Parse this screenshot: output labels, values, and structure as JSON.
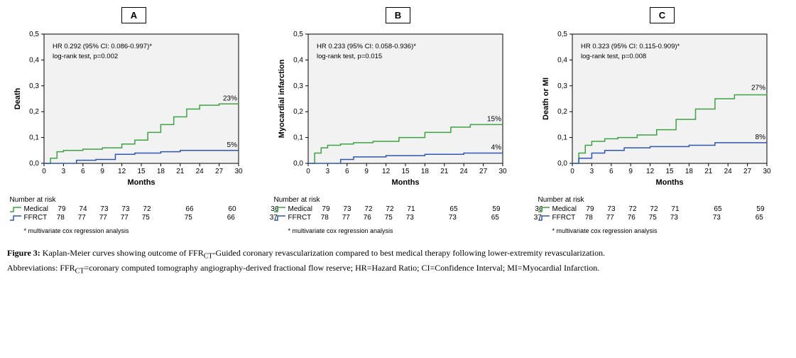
{
  "figure": {
    "captionLead": "Figure 3:",
    "captionBody": " Kaplan-Meier curves showing outcome of FFR",
    "captionSub1": "CT",
    "captionBody2": "-Guided coronary revascularization compared to best medical therapy following lower-extremity revascularization.",
    "abbrevLead": "Abbreviations: FFR",
    "abbrevSub": "CT",
    "abbrevBody": "=coronary computed tomography angiography-derived fractional flow reserve; HR=Hazard Ratio; CI=Confidence Interval; MI=Myocardial Infarction."
  },
  "style": {
    "plot_bg": "#f2f2f2",
    "border_color": "#000000",
    "grid_color": "#f2f2f2",
    "tick_font_size": 10,
    "axis_label_font_size": 11,
    "axis_font_weight": "bold",
    "medical_color": "#3fa244",
    "ffrct_color": "#2f56b0",
    "line_width": 1.5,
    "ylim": [
      0,
      0.5
    ],
    "ytick_step": 0.1,
    "yticks": [
      "0,0",
      "0,1",
      "0,2",
      "0,3",
      "0,4",
      "0,5"
    ],
    "xlim": [
      0,
      30
    ],
    "xtick_step": 3,
    "xticks": [
      "0",
      "3",
      "6",
      "9",
      "12",
      "15",
      "18",
      "21",
      "24",
      "27",
      "30"
    ],
    "xlabel": "Months"
  },
  "legend": {
    "riskTitle": "Number at risk",
    "medicalLabel": "Medical",
    "ffrctLabel": "FFRCT",
    "footnote": "* multivariate cox regression analysis"
  },
  "panels": [
    {
      "id": "A",
      "ylabel": "Death",
      "hr_text": "HR 0.292 (95% CI: 0.086-0.997)*",
      "logrank_text": "log-rank test, p=0.002",
      "medical_end_label": "23%",
      "ffrct_end_label": "5%",
      "medical_points": [
        [
          0,
          0
        ],
        [
          1,
          0.02
        ],
        [
          2,
          0.045
        ],
        [
          3,
          0.05
        ],
        [
          6,
          0.055
        ],
        [
          9,
          0.06
        ],
        [
          12,
          0.075
        ],
        [
          14,
          0.09
        ],
        [
          16,
          0.12
        ],
        [
          18,
          0.15
        ],
        [
          20,
          0.18
        ],
        [
          22,
          0.21
        ],
        [
          24,
          0.225
        ],
        [
          27,
          0.23
        ],
        [
          30,
          0.23
        ]
      ],
      "ffrct_points": [
        [
          0,
          0
        ],
        [
          2,
          0.0
        ],
        [
          5,
          0.012
        ],
        [
          8,
          0.015
        ],
        [
          11,
          0.035
        ],
        [
          14,
          0.04
        ],
        [
          18,
          0.045
        ],
        [
          21,
          0.05
        ],
        [
          27,
          0.05
        ],
        [
          30,
          0.05
        ]
      ],
      "medical_risk": [
        "79",
        "74",
        "73",
        "73",
        "72",
        "",
        "66",
        "",
        "60",
        "",
        "36"
      ],
      "ffrct_risk": [
        "78",
        "77",
        "77",
        "77",
        "75",
        "",
        "75",
        "",
        "66",
        "",
        "37"
      ]
    },
    {
      "id": "B",
      "ylabel": "Myocardial infarction",
      "hr_text": "HR 0.233 (95% CI: 0.058-0.936)*",
      "logrank_text": "log-rank test, p=0.015",
      "medical_end_label": "15%",
      "ffrct_end_label": "4%",
      "medical_points": [
        [
          0,
          0
        ],
        [
          1,
          0.04
        ],
        [
          2,
          0.06
        ],
        [
          3,
          0.07
        ],
        [
          5,
          0.075
        ],
        [
          7,
          0.08
        ],
        [
          10,
          0.085
        ],
        [
          14,
          0.1
        ],
        [
          18,
          0.12
        ],
        [
          22,
          0.14
        ],
        [
          25,
          0.15
        ],
        [
          30,
          0.15
        ]
      ],
      "ffrct_points": [
        [
          0,
          0
        ],
        [
          3,
          0.0
        ],
        [
          5,
          0.015
        ],
        [
          7,
          0.025
        ],
        [
          12,
          0.03
        ],
        [
          18,
          0.035
        ],
        [
          24,
          0.04
        ],
        [
          30,
          0.04
        ]
      ],
      "medical_risk": [
        "79",
        "73",
        "72",
        "72",
        "71",
        "",
        "65",
        "",
        "59",
        "",
        "36"
      ],
      "ffrct_risk": [
        "78",
        "77",
        "76",
        "75",
        "73",
        "",
        "73",
        "",
        "65",
        "",
        "37"
      ]
    },
    {
      "id": "C",
      "ylabel": "Death or MI",
      "hr_text": "HR 0.323 (95% CI: 0.115-0.909)*",
      "logrank_text": "log-rank test, p=0.008",
      "medical_end_label": "27%",
      "ffrct_end_label": "8%",
      "medical_points": [
        [
          0,
          0
        ],
        [
          1,
          0.04
        ],
        [
          2,
          0.07
        ],
        [
          3,
          0.085
        ],
        [
          5,
          0.095
        ],
        [
          7,
          0.1
        ],
        [
          10,
          0.11
        ],
        [
          13,
          0.13
        ],
        [
          16,
          0.17
        ],
        [
          19,
          0.21
        ],
        [
          22,
          0.25
        ],
        [
          25,
          0.265
        ],
        [
          30,
          0.27
        ]
      ],
      "ffrct_points": [
        [
          0,
          0
        ],
        [
          1,
          0.02
        ],
        [
          3,
          0.04
        ],
        [
          5,
          0.05
        ],
        [
          8,
          0.06
        ],
        [
          12,
          0.065
        ],
        [
          18,
          0.07
        ],
        [
          22,
          0.08
        ],
        [
          30,
          0.08
        ]
      ],
      "medical_risk": [
        "79",
        "73",
        "72",
        "72",
        "71",
        "",
        "65",
        "",
        "59",
        "",
        "36"
      ],
      "ffrct_risk": [
        "78",
        "77",
        "76",
        "75",
        "73",
        "",
        "73",
        "",
        "65",
        "",
        "37"
      ]
    }
  ]
}
